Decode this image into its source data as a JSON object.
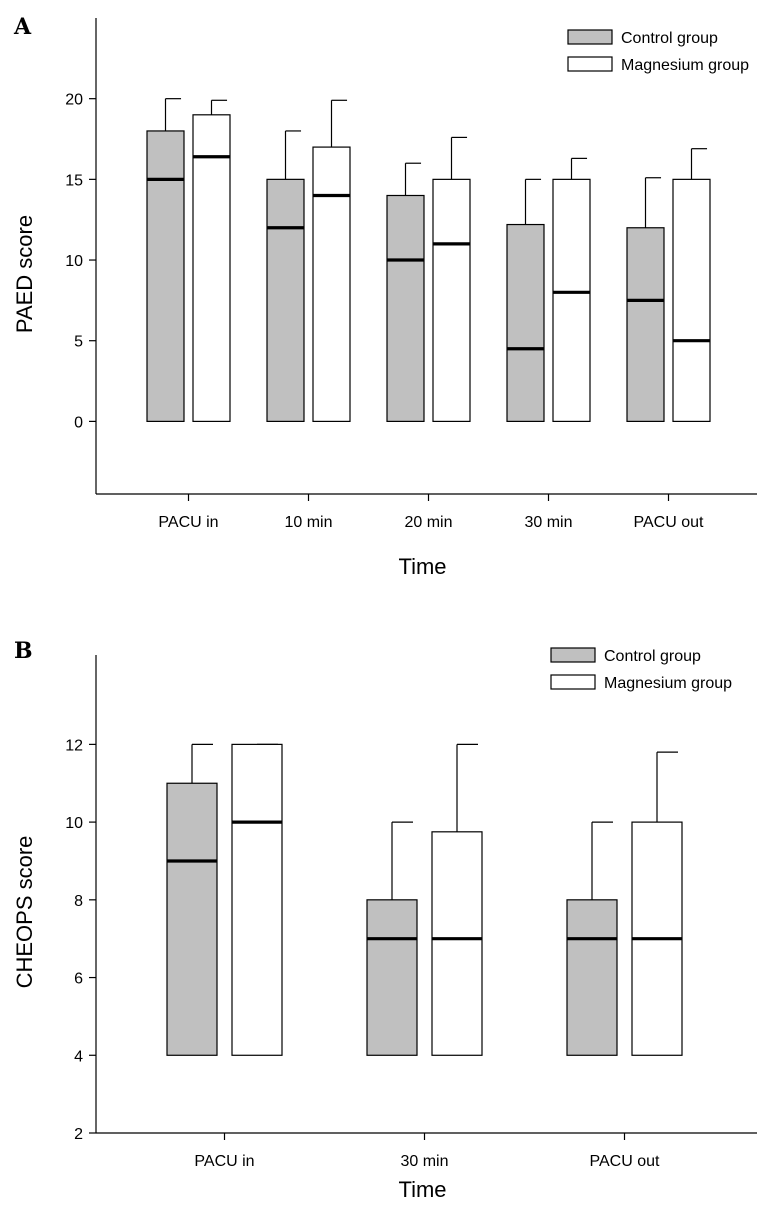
{
  "chart_data": [
    {
      "type": "box",
      "panel": "A",
      "xlabel": "Time",
      "ylabel": "PAED score",
      "ylim": [
        -4.5,
        25
      ],
      "yticks": [
        0,
        5,
        10,
        15,
        20
      ],
      "categories": [
        "PACU in",
        "10 min",
        "20 min",
        "30 min",
        "PACU out"
      ],
      "legend": {
        "position": "top-right"
      },
      "series": [
        {
          "name": "Control group",
          "color": "#c0c0c0",
          "boxes": [
            {
              "low": 0,
              "q3": 18,
              "median": 15,
              "max": 20
            },
            {
              "low": 0,
              "q3": 15,
              "median": 12,
              "max": 18
            },
            {
              "low": 0,
              "q3": 14,
              "median": 10,
              "max": 16
            },
            {
              "low": 0,
              "q3": 12.2,
              "median": 4.5,
              "max": 15
            },
            {
              "low": 0,
              "q3": 12,
              "median": 7.5,
              "max": 15.1
            }
          ]
        },
        {
          "name": "Magnesium group",
          "color": "#ffffff",
          "boxes": [
            {
              "low": 0,
              "q3": 19,
              "median": 16.4,
              "max": 19.9
            },
            {
              "low": 0,
              "q3": 17,
              "median": 14,
              "max": 19.9
            },
            {
              "low": 0,
              "q3": 15,
              "median": 11,
              "max": 17.6
            },
            {
              "low": 0,
              "q3": 15,
              "median": 8,
              "max": 16.3
            },
            {
              "low": 0,
              "q3": 15,
              "median": 5,
              "max": 16.9
            }
          ]
        }
      ]
    },
    {
      "type": "box",
      "panel": "B",
      "xlabel": "Time",
      "ylabel": "CHEOPS score",
      "ylim": [
        2,
        14.3
      ],
      "yticks": [
        2,
        4,
        6,
        8,
        10,
        12
      ],
      "categories": [
        "PACU in",
        "30 min",
        "PACU out"
      ],
      "legend": {
        "position": "top-right"
      },
      "series": [
        {
          "name": "Control group",
          "color": "#c0c0c0",
          "boxes": [
            {
              "low": 4,
              "q3": 11,
              "median": 9,
              "max": 12
            },
            {
              "low": 4,
              "q3": 8,
              "median": 7,
              "max": 10
            },
            {
              "low": 4,
              "q3": 8,
              "median": 7,
              "max": 10
            }
          ]
        },
        {
          "name": "Magnesium group",
          "color": "#ffffff",
          "boxes": [
            {
              "low": 4,
              "q3": 12,
              "median": 10,
              "max": 12
            },
            {
              "low": 4,
              "q3": 9.75,
              "median": 7,
              "max": 12
            },
            {
              "low": 4,
              "q3": 10,
              "median": 7,
              "max": 11.8
            }
          ]
        }
      ]
    }
  ]
}
